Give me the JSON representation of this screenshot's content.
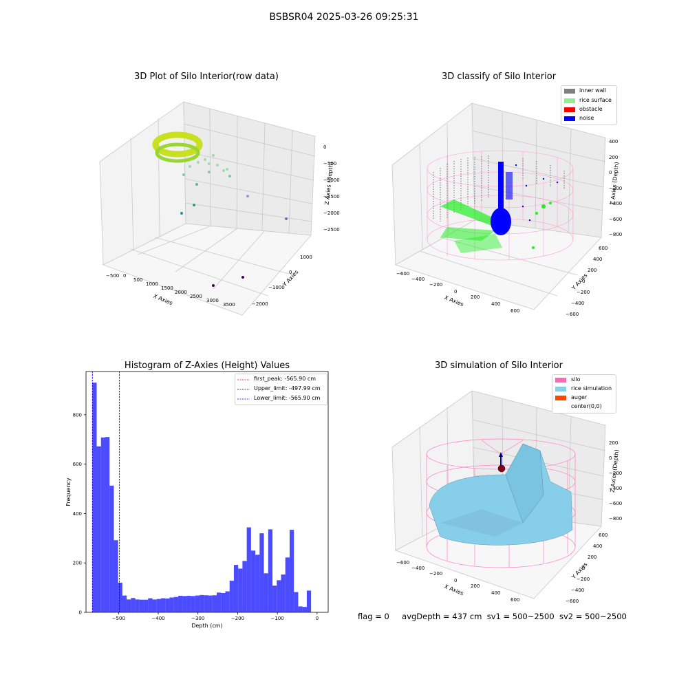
{
  "figure": {
    "suptitle": "BSBSR04 2025-03-26 09:25:31",
    "status": {
      "flag": "flag = 0",
      "avg_depth": "avgDepth = 437 cm",
      "sv1": "sv1 = 500~2500",
      "sv2": "sv2 = 500~2500"
    }
  },
  "panels": {
    "raw": {
      "title": "3D Plot of Silo Interior(row data)",
      "xlabel": "X Axies",
      "ylabel": "Y Axies",
      "zlabel": "Z Axies (Depth)",
      "xticks": [
        "−500",
        "0",
        "500",
        "1000",
        "1500",
        "2000",
        "2500",
        "3000",
        "3500"
      ],
      "yticks": [
        "1000",
        "0",
        "−1000",
        "−2000"
      ],
      "zticks": [
        "0",
        "−500",
        "−1000",
        "−1500",
        "−2000",
        "−2500"
      ]
    },
    "classify": {
      "title": "3D classify of Silo Interior",
      "xlabel": "X Axies",
      "ylabel": "Y Axies",
      "zlabel": "Z Axies (Depth)",
      "xticks": [
        "−600",
        "−400",
        "−200",
        "0",
        "200",
        "400",
        "600"
      ],
      "yticks": [
        "600",
        "400",
        "200",
        "0",
        "−200",
        "−400",
        "−600"
      ],
      "zticks": [
        "400",
        "200",
        "0",
        "−200",
        "−400",
        "−600",
        "−800"
      ],
      "legend": [
        {
          "label": "inner wall",
          "color": "#808080"
        },
        {
          "label": "rice surface",
          "color": "#90ee90"
        },
        {
          "label": "obstacle",
          "color": "#ff0000"
        },
        {
          "label": "noise",
          "color": "#0000ff"
        }
      ]
    },
    "simulation": {
      "title": "3D simulation of Silo Interior",
      "xlabel": "X Axies",
      "ylabel": "Y Axies",
      "zlabel": "Z Axies (Depth)",
      "xticks": [
        "−600",
        "−400",
        "−200",
        "0",
        "200",
        "400",
        "600"
      ],
      "yticks": [
        "600",
        "400",
        "200",
        "0",
        "−200",
        "−400",
        "−600"
      ],
      "zticks": [
        "200",
        "0",
        "−200",
        "−400",
        "−600",
        "−800"
      ],
      "legend": [
        {
          "label": "silo",
          "color": "#ff69b4"
        },
        {
          "label": "rice simulation",
          "color": "#87ceeb"
        },
        {
          "label": "auger",
          "color": "#ff4500"
        },
        {
          "label": "center(0,0)",
          "color": ""
        }
      ]
    }
  },
  "chart_data": [
    {
      "type": "bar",
      "title": "Histogram of Z-Axies (Height) Values",
      "xlabel": "Depth (cm)",
      "ylabel": "Frequency",
      "xlim": [
        -582,
        28
      ],
      "ylim": [
        0,
        975
      ],
      "xticks": [
        -500,
        -400,
        -300,
        -200,
        -100,
        0
      ],
      "xtick_labels": [
        "−500",
        "−400",
        "−300",
        "−200",
        "−100",
        "0"
      ],
      "yticks": [
        0,
        200,
        400,
        600,
        800
      ],
      "yticks_labels": [
        "0",
        "200",
        "400",
        "600",
        "800"
      ],
      "bar_color": "#0000ff",
      "bin_edges": [
        -565.9,
        -555.1,
        -544.3,
        -533.5,
        -522.7,
        -511.9,
        -501.1,
        -490.3,
        -479.5,
        -468.7,
        -457.9,
        -447.1,
        -436.3,
        -425.5,
        -414.7,
        -403.9,
        -393.1,
        -382.3,
        -371.5,
        -360.7,
        -349.9,
        -339.1,
        -328.3,
        -317.5,
        -306.7,
        -295.9,
        -285.1,
        -274.3,
        -263.5,
        -252.7,
        -241.9,
        -231.1,
        -220.3,
        -209.5,
        -198.7,
        -187.9,
        -177.1,
        -166.3,
        -155.5,
        -144.7,
        -133.9,
        -123.1,
        -112.3,
        -101.5,
        -90.7,
        -79.9,
        -69.1,
        -58.3,
        -47.5,
        -36.7,
        -25.9,
        -15.1,
        -4.3,
        6.5
      ],
      "values": [
        930,
        672,
        708,
        710,
        513,
        292,
        120,
        68,
        52,
        58,
        52,
        51,
        51,
        57,
        52,
        54,
        57,
        56,
        60,
        62,
        67,
        66,
        67,
        66,
        68,
        70,
        69,
        68,
        69,
        80,
        78,
        85,
        128,
        192,
        177,
        208,
        344,
        250,
        233,
        320,
        158,
        336,
        108,
        130,
        153,
        222,
        334,
        82,
        24,
        22,
        88,
        0,
        0
      ],
      "vlines": [
        {
          "x": -565.9,
          "label": "first_peak: -565.90 cm",
          "color": "#ff0000"
        },
        {
          "x": -497.99,
          "label": "Upper_limit: -497.99 cm",
          "color": "#00008b"
        },
        {
          "x": -565.9,
          "label": "Lower_limit: -565.90 cm",
          "color": "#0000ff"
        }
      ]
    }
  ]
}
